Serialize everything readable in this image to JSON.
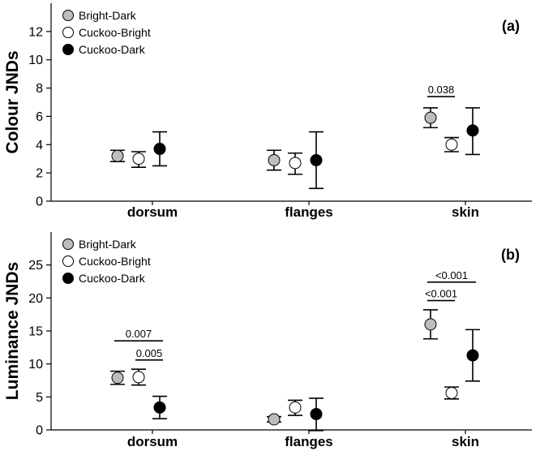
{
  "legend": [
    {
      "name": "Bright-Dark",
      "color": "#bdbdbd"
    },
    {
      "name": "Cuckoo-Bright",
      "color": "#ffffff"
    },
    {
      "name": "Cuckoo-Dark",
      "color": "#000000"
    }
  ],
  "chart_data": [
    {
      "type": "scatter",
      "panel": "(a)",
      "ylabel": "Colour JNDs",
      "ylim": [
        0,
        14
      ],
      "yticks": [
        0,
        2,
        4,
        6,
        8,
        10,
        12
      ],
      "categories": [
        "dorsum",
        "flanges",
        "skin"
      ],
      "series": [
        {
          "name": "Bright-Dark",
          "color": "#bdbdbd",
          "values": [
            3.2,
            2.9,
            5.9
          ],
          "lower": [
            2.8,
            2.2,
            5.2
          ],
          "upper": [
            3.6,
            3.6,
            6.6
          ]
        },
        {
          "name": "Cuckoo-Bright",
          "color": "#ffffff",
          "values": [
            3.0,
            2.7,
            4.0
          ],
          "lower": [
            2.4,
            1.9,
            3.5
          ],
          "upper": [
            3.5,
            3.4,
            4.5
          ]
        },
        {
          "name": "Cuckoo-Dark",
          "color": "#000000",
          "values": [
            3.7,
            2.9,
            5.0
          ],
          "lower": [
            2.5,
            0.9,
            3.3
          ],
          "upper": [
            4.9,
            4.9,
            6.6
          ]
        }
      ],
      "annotations": [
        {
          "category": 2,
          "from_series": 0,
          "to_series": 1,
          "y": 7.4,
          "label": "0.038"
        }
      ]
    },
    {
      "type": "scatter",
      "panel": "(b)",
      "ylabel": "Luminance JNDs",
      "ylim": [
        0,
        30
      ],
      "yticks": [
        0,
        5,
        10,
        15,
        20,
        25
      ],
      "categories": [
        "dorsum",
        "flanges",
        "skin"
      ],
      "series": [
        {
          "name": "Bright-Dark",
          "color": "#bdbdbd",
          "values": [
            7.9,
            1.6,
            16.0
          ],
          "lower": [
            6.9,
            1.2,
            13.8
          ],
          "upper": [
            8.9,
            2.0,
            18.2
          ]
        },
        {
          "name": "Cuckoo-Bright",
          "color": "#ffffff",
          "values": [
            8.0,
            3.4,
            5.6
          ],
          "lower": [
            6.8,
            2.2,
            4.7
          ],
          "upper": [
            9.2,
            4.5,
            6.5
          ]
        },
        {
          "name": "Cuckoo-Dark",
          "color": "#000000",
          "values": [
            3.4,
            2.4,
            11.3
          ],
          "lower": [
            1.7,
            -0.1,
            7.4
          ],
          "upper": [
            5.1,
            4.8,
            15.2
          ]
        }
      ],
      "annotations": [
        {
          "category": 0,
          "from_series": 0,
          "to_series": 2,
          "y": 13.5,
          "label": "0.007"
        },
        {
          "category": 0,
          "from_series": 1,
          "to_series": 2,
          "y": 10.6,
          "label": "0.005"
        },
        {
          "category": 2,
          "from_series": 0,
          "to_series": 2,
          "y": 22.4,
          "label": "<0.001"
        },
        {
          "category": 2,
          "from_series": 0,
          "to_series": 1,
          "y": 19.6,
          "label": "<0.001"
        }
      ]
    }
  ]
}
